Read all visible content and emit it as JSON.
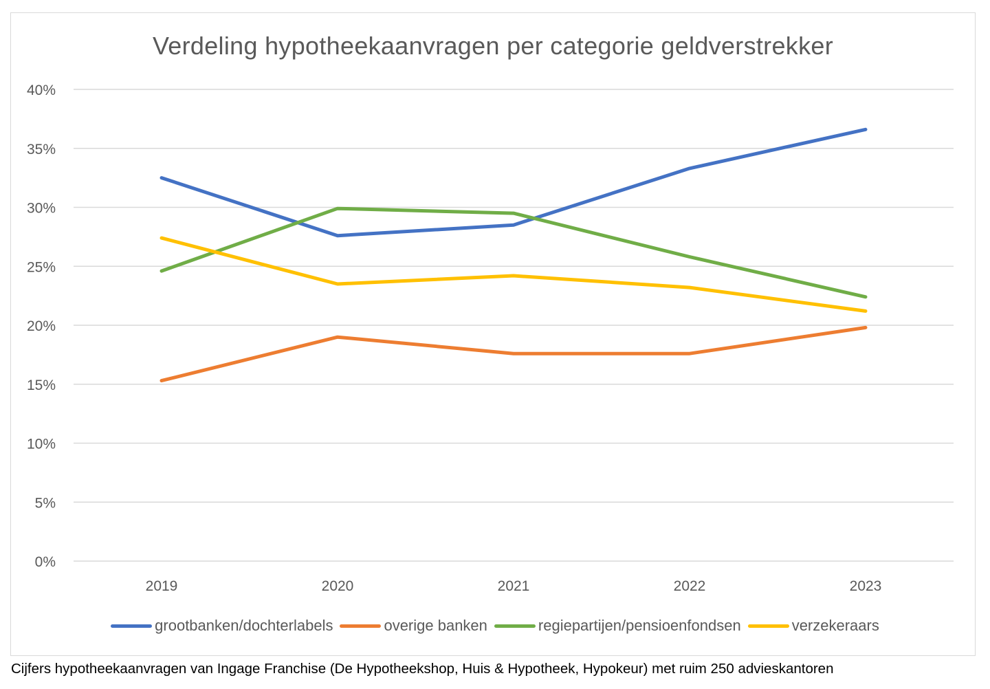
{
  "caption": "Cijfers hypotheekaanvragen van Ingage Franchise (De Hypotheekshop, Huis & Hypotheek, Hypokeur) met ruim 250 advieskantoren",
  "chart_data": {
    "type": "line",
    "title": "Verdeling hypotheekaanvragen per categorie geldverstrekker",
    "xlabel": "",
    "ylabel": "",
    "x": [
      "2019",
      "2020",
      "2021",
      "2022",
      "2023"
    ],
    "ylim": [
      0,
      40
    ],
    "yticks": [
      0,
      5,
      10,
      15,
      20,
      25,
      30,
      35,
      40
    ],
    "ytick_labels": [
      "0%",
      "5%",
      "10%",
      "15%",
      "20%",
      "25%",
      "30%",
      "35%",
      "40%"
    ],
    "grid": true,
    "legend_position": "bottom",
    "series": [
      {
        "name": "grootbanken/dochterlabels",
        "color": "#4472c4",
        "values": [
          32.5,
          27.6,
          28.5,
          33.3,
          36.6
        ]
      },
      {
        "name": "overige banken",
        "color": "#ed7d31",
        "values": [
          15.3,
          19.0,
          17.6,
          17.6,
          19.8
        ]
      },
      {
        "name": "regiepartijen/pensioenfondsen",
        "color": "#70ad47",
        "values": [
          24.6,
          29.9,
          29.5,
          25.8,
          22.4
        ]
      },
      {
        "name": "verzekeraars",
        "color": "#ffc000",
        "values": [
          27.4,
          23.5,
          24.2,
          23.2,
          21.2
        ]
      }
    ]
  }
}
